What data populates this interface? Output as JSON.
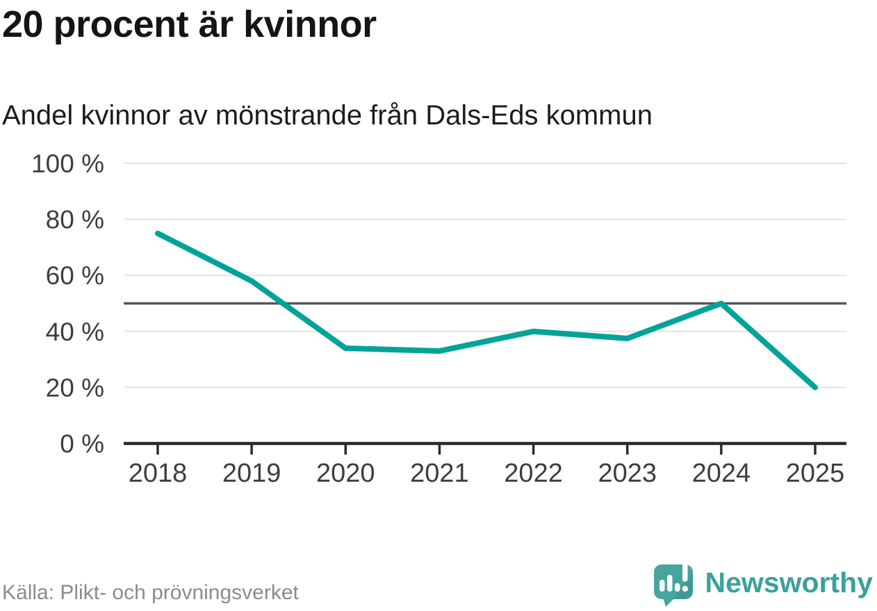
{
  "title": "20 procent är kvinnor",
  "subtitle": "Andel kvinnor av mönstrande från Dals-Eds kommun",
  "footer": {
    "source": "Källa: Plikt- och prövningsverket",
    "brand": "Newsworthy",
    "logo_icon": "newsworthy-logo-icon"
  },
  "colors": {
    "line": "#00a39a",
    "reference_line": "#55565a",
    "grid": "#e3e3e3",
    "axis": "#2b2b2b",
    "tick_text": "#3d3d3d",
    "title_text": "#151515",
    "source_text": "#8b8b8b",
    "brand_teal": "#3aa19c",
    "logo_bubble": "#46a59f"
  },
  "chart_data": {
    "type": "line",
    "title": "20 procent är kvinnor",
    "subtitle": "Andel kvinnor av mönstrande från Dals-Eds kommun",
    "series_name": "Andel kvinnor av mönstrande, Dals-Eds kommun",
    "x": [
      2018,
      2019,
      2020,
      2021,
      2022,
      2023,
      2024,
      2025
    ],
    "values": [
      75,
      58,
      34,
      33,
      40,
      37.5,
      50,
      20
    ],
    "unit": "%",
    "ylim": [
      0,
      100
    ],
    "yticks": [
      0,
      20,
      40,
      60,
      80,
      100
    ],
    "ytick_format": "{v} %",
    "reference_line": 50,
    "grid": "horizontal",
    "legend": "none",
    "markers": "none",
    "line_width": 8
  }
}
